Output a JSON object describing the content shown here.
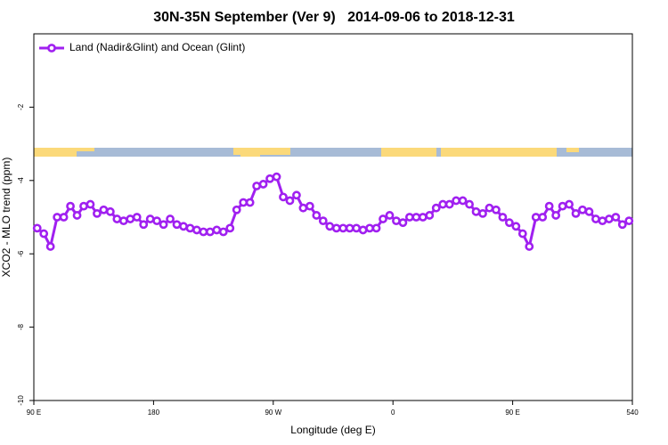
{
  "chart_data": {
    "type": "line",
    "title": "30N-35N September (Ver 9)   2014-09-06 to 2018-12-31",
    "xlabel": "Longitude (deg E)",
    "ylabel": "XCO2 - MLO trend (ppm)",
    "xlim": [
      90,
      540
    ],
    "ylim": [
      -10,
      0
    ],
    "xticks": [
      {
        "value": 90,
        "label": "90 E"
      },
      180,
      {
        "value": 270,
        "label": "90 W"
      },
      {
        "value": 360,
        "label": "0"
      },
      {
        "value": 450,
        "label": "90 E"
      },
      540
    ],
    "yticks": [
      -10,
      -8,
      -6,
      -4,
      -2
    ],
    "legend": "upper left",
    "series": [
      {
        "name": "Land (Nadir&Glint) and Ocean (Glint)",
        "color": "#a020f0",
        "x": [
          92.5,
          97.5,
          102.5,
          107.5,
          112.5,
          117.5,
          122.5,
          127.5,
          132.5,
          137.5,
          142.5,
          147.5,
          152.5,
          157.5,
          162.5,
          167.5,
          172.5,
          177.5,
          182.5,
          187.5,
          192.5,
          197.5,
          202.5,
          207.5,
          212.5,
          217.5,
          222.5,
          227.5,
          232.5,
          237.5,
          242.5,
          247.5,
          252.5,
          257.5,
          262.5,
          267.5,
          272.5,
          277.5,
          282.5,
          287.5,
          292.5,
          297.5,
          302.5,
          307.5,
          312.5,
          317.5,
          322.5,
          327.5,
          332.5,
          337.5,
          342.5,
          347.5,
          352.5,
          357.5,
          362.5,
          367.5,
          372.5,
          377.5,
          382.5,
          387.5,
          392.5,
          397.5,
          402.5,
          407.5,
          412.5,
          417.5,
          422.5,
          427.5,
          432.5,
          437.5,
          442.5,
          447.5,
          452.5,
          457.5,
          462.5,
          467.5,
          472.5,
          477.5,
          482.5,
          487.5,
          492.5,
          497.5,
          502.5,
          507.5,
          512.5,
          517.5,
          522.5,
          527.5,
          532.5,
          537.5
        ],
        "values": [
          -5.3,
          -5.45,
          -5.8,
          -5.0,
          -5.0,
          -4.7,
          -4.95,
          -4.7,
          -4.65,
          -4.9,
          -4.8,
          -4.85,
          -5.05,
          -5.1,
          -5.05,
          -5.0,
          -5.2,
          -5.05,
          -5.1,
          -5.2,
          -5.05,
          -5.2,
          -5.25,
          -5.3,
          -5.35,
          -5.4,
          -5.4,
          -5.35,
          -5.4,
          -5.3,
          -4.8,
          -4.6,
          -4.6,
          -4.15,
          -4.1,
          -3.95,
          -3.9,
          -4.45,
          -4.55,
          -4.4,
          -4.75,
          -4.7,
          -4.95,
          -5.1,
          -5.25,
          -5.3,
          -5.3,
          -5.3,
          -5.3,
          -5.35,
          -5.3,
          -5.3,
          -5.05,
          -4.95,
          -5.1,
          -5.15,
          -5.0,
          -5.0,
          -5.0,
          -4.95,
          -4.75,
          -4.65,
          -4.65,
          -4.55,
          -4.55,
          -4.65,
          -4.85,
          -4.9,
          -4.75,
          -4.8,
          -5.0,
          -5.15,
          -5.25,
          -5.45,
          -5.8,
          -5.0,
          -5.0,
          -4.7,
          -4.95,
          -4.7,
          -4.65,
          -4.9,
          -4.8,
          -4.85,
          -5.05,
          -5.1,
          -5.05,
          -5.0,
          -5.2,
          -5.1
        ]
      }
    ]
  }
}
